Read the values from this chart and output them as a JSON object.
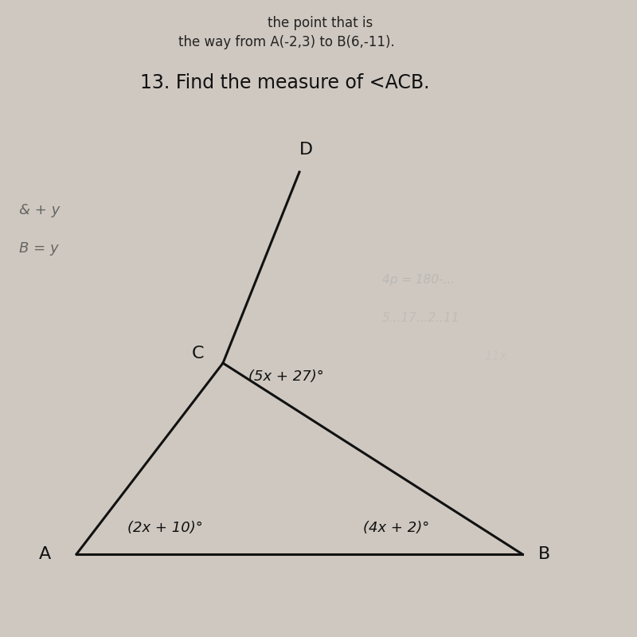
{
  "background_color": "#cec8c0",
  "title_text": "13. Find the measure of <ACB.",
  "top_text_line1": "the point that is",
  "top_text_line2": "the way from A(-2,3) to B(6,-11).",
  "left_text_line1": "& + y",
  "left_text_line2": "B = y",
  "point_A": [
    0.12,
    0.13
  ],
  "point_B": [
    0.82,
    0.13
  ],
  "point_C": [
    0.35,
    0.43
  ],
  "point_D": [
    0.47,
    0.73
  ],
  "label_A": "A",
  "label_B": "B",
  "label_C": "C",
  "label_D": "D",
  "angle_A_label": "(2x + 10)°",
  "angle_B_label": "(4x + 2)°",
  "angle_ACB_label": "(5x + 27)°",
  "line_color": "#111111",
  "text_color": "#111111"
}
